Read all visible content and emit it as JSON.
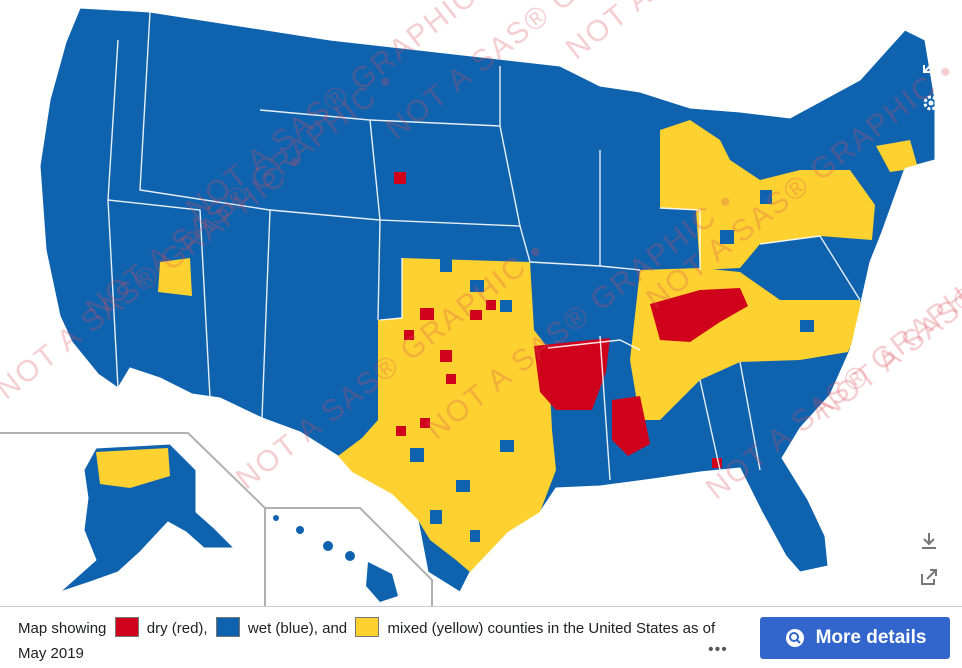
{
  "colors": {
    "dry": "#d0021b",
    "wet": "#0f62ad",
    "mixed": "#fdd130",
    "border": "#ffffff",
    "button": "#3366cc"
  },
  "watermark_text": "NOT A SAS® GRAPHIC •",
  "legend": {
    "prefix": "Map showing",
    "dry_label": "dry (red),",
    "wet_label": "wet (blue), and",
    "mixed_label": "mixed (yellow) counties in the United States as of May 2019"
  },
  "more_dots": "•••",
  "button_label": "More details",
  "icons": {
    "close": "close-icon",
    "expand": "expand-icon",
    "settings": "gear-icon",
    "download": "download-icon",
    "share": "share-icon",
    "button": "magnifier-icon"
  }
}
